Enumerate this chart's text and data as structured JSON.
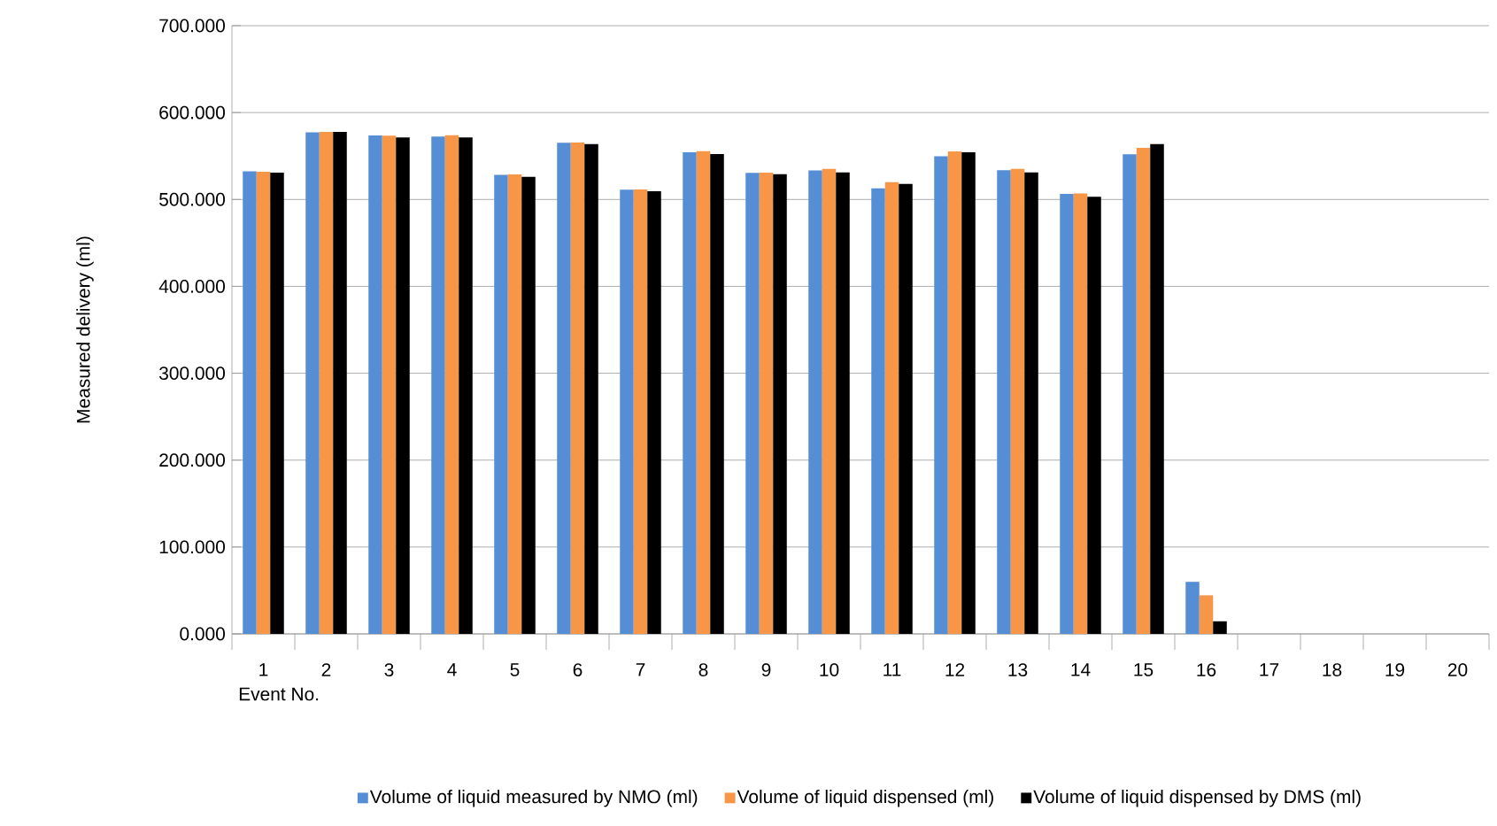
{
  "chart_data": {
    "type": "bar",
    "xlabel": "Event No.",
    "ylabel": "Measured delivery (ml)",
    "categories": [
      "1",
      "2",
      "3",
      "4",
      "5",
      "6",
      "7",
      "8",
      "9",
      "10",
      "11",
      "12",
      "13",
      "14",
      "15",
      "16",
      "17",
      "18",
      "19",
      "20"
    ],
    "series": [
      {
        "name": "Volume of liquid measured by NMO (ml)",
        "color": "#558ed5",
        "values": [
          532.3,
          577.3,
          573.6,
          572.5,
          528.2,
          565.3,
          511.3,
          554.4,
          530.5,
          533.3,
          512.7,
          549.6,
          533.7,
          506.5,
          551.9,
          59.9,
          null,
          null,
          null,
          null
        ]
      },
      {
        "name": "Volume of liquid dispensed (ml)",
        "color": "#f79646",
        "values": [
          532.0,
          577.6,
          573.3,
          573.9,
          528.9,
          565.6,
          511.6,
          555.5,
          530.8,
          535.1,
          519.9,
          555.4,
          535.1,
          506.9,
          559.5,
          44.4,
          null,
          null,
          null,
          null
        ]
      },
      {
        "name": "Volume of liquid dispensed by DMS (ml)",
        "color": "#000000",
        "values": [
          530.8,
          577.6,
          571.4,
          571.4,
          526.1,
          563.8,
          509.4,
          552.2,
          529.0,
          531.2,
          517.8,
          554.4,
          531.2,
          503.2,
          563.8,
          14.5,
          null,
          null,
          null,
          null
        ]
      }
    ],
    "ylim": [
      0,
      700
    ],
    "yticks": [
      {
        "value": 0,
        "label": "0.000"
      },
      {
        "value": 100,
        "label": "100.000"
      },
      {
        "value": 200,
        "label": "200.000"
      },
      {
        "value": 300,
        "label": "300.000"
      },
      {
        "value": 400,
        "label": "400.000"
      },
      {
        "value": 500,
        "label": "500.000"
      },
      {
        "value": 600,
        "label": "600.000"
      },
      {
        "value": 700,
        "label": "700.000"
      }
    ],
    "grid": "y",
    "legend": "bottom"
  }
}
